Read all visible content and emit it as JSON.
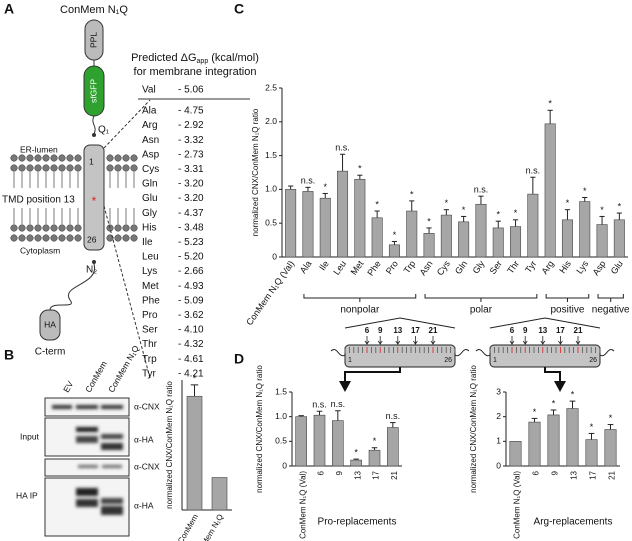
{
  "panel_labels": [
    "A",
    "B",
    "C",
    "D"
  ],
  "diagram": {
    "title": "ConMem N₁Q",
    "ppl": "PPL",
    "gfp": "sfGFP",
    "q1": "Q₁",
    "lumen": "ER-lumen",
    "tmd": "TMD position 13",
    "cytoplasm": "Cytoplasm",
    "start": "1",
    "end": "26",
    "star": "*",
    "n2": "N₂",
    "ha": "HA",
    "cterm": "C-term"
  },
  "table": {
    "title_line1": "Predicted ΔG",
    "title_sub": "app",
    "title_unit": "(kcal/mol)",
    "title_line2": "for membrane integration",
    "header": [
      "Val",
      "- 5.06"
    ],
    "rows": [
      [
        "Ala",
        "- 4.75"
      ],
      [
        "Arg",
        "- 2.92"
      ],
      [
        "Asn",
        "- 3.32"
      ],
      [
        "Asp",
        "- 2.73"
      ],
      [
        "Cys",
        "- 3.31"
      ],
      [
        "Gln",
        "- 3.20"
      ],
      [
        "Glu",
        "- 3.20"
      ],
      [
        "Gly",
        "- 4.37"
      ],
      [
        "His",
        "- 3.48"
      ],
      [
        "Ile",
        "- 5.23"
      ],
      [
        "Leu",
        "- 5.20"
      ],
      [
        "Lys",
        "- 2.66"
      ],
      [
        "Met",
        "- 4.93"
      ],
      [
        "Phe",
        "- 5.09"
      ],
      [
        "Pro",
        "- 3.62"
      ],
      [
        "Ser",
        "- 4.10"
      ],
      [
        "Thr",
        "- 4.32"
      ],
      [
        "Trp",
        "- 4.61"
      ],
      [
        "Tyr",
        "- 4.21"
      ]
    ]
  },
  "blot": {
    "lanes": [
      "EV",
      "ConMem",
      "ConMem N₁Q"
    ],
    "sections": [
      {
        "name": "Input",
        "antibodies": [
          "α-CNX",
          "α-HA"
        ]
      },
      {
        "name": "HA IP",
        "antibodies": [
          "α-CNX",
          "α-HA"
        ]
      }
    ]
  },
  "tmd_schematic": {
    "positions": [
      "6",
      "9",
      "13",
      "17",
      "21"
    ],
    "start": "1",
    "end": "26"
  },
  "chart_data": [
    {
      "type": "bar",
      "y_label": "normalized CNX/ConMem N₁Q ratio",
      "color": "#a6a6a6",
      "categories": [
        "ConMem",
        "ConMem N₁Q"
      ],
      "values": [
        3.5,
        1.0
      ],
      "errors": [
        0.35,
        0
      ],
      "annotations": [
        "*",
        null
      ],
      "ylim": [
        0,
        4
      ]
    },
    {
      "type": "bar",
      "y_label": "normalized CNX/ConMem N₁Q ratio",
      "color": "#a6a6a6",
      "categories": [
        "ConMem N₁Q (Val)",
        "Ala",
        "Ile",
        "Leu",
        "Met",
        "Phe",
        "Pro",
        "Trp",
        "Asn",
        "Cys",
        "Gln",
        "Gly",
        "Ser",
        "Thr",
        "Tyr",
        "Arg",
        "His",
        "Lys",
        "Asp",
        "Glu"
      ],
      "values": [
        1.0,
        0.97,
        0.87,
        1.27,
        1.15,
        0.58,
        0.18,
        0.68,
        0.35,
        0.62,
        0.52,
        0.78,
        0.43,
        0.45,
        0.93,
        1.97,
        0.55,
        0.82,
        0.48,
        0.55
      ],
      "errors": [
        0.05,
        0.06,
        0.07,
        0.25,
        0.06,
        0.1,
        0.05,
        0.15,
        0.08,
        0.08,
        0.08,
        0.12,
        0.1,
        0.1,
        0.25,
        0.2,
        0.15,
        0.06,
        0.12,
        0.1
      ],
      "annotations": [
        null,
        "n.s.",
        "*",
        "n.s.",
        "*",
        "*",
        "*",
        "*",
        "*",
        "*",
        "*",
        "n.s.",
        "*",
        "*",
        "n.s.",
        "*",
        "*",
        "*",
        "*",
        "*"
      ],
      "groups": [
        {
          "name": "nonpolar",
          "from": "Ala",
          "to": "Trp"
        },
        {
          "name": "polar",
          "from": "Asn",
          "to": "Tyr"
        },
        {
          "name": "positive",
          "from": "Arg",
          "to": "Lys"
        },
        {
          "name": "negative",
          "from": "Asp",
          "to": "Glu"
        }
      ],
      "ylim": [
        0,
        2.5
      ],
      "yticks": [
        0,
        0.5,
        {
          "value": 1,
          "label": "1.0"
        },
        1.5,
        {
          "value": 2,
          "label": "2.0"
        },
        2.5
      ]
    },
    {
      "type": "bar",
      "y_label": "normalized CNX/ConMem N₁Q ratio",
      "x_label": "Pro-replacements",
      "color": "#a6a6a6",
      "categories": [
        "ConMem N₁Q (Val)",
        "6",
        "9",
        "13",
        "17",
        "21"
      ],
      "values": [
        1.0,
        1.03,
        0.92,
        0.12,
        0.32,
        0.78
      ],
      "errors": [
        0.02,
        0.08,
        0.2,
        0.02,
        0.05,
        0.1
      ],
      "annotations": [
        null,
        "n.s.",
        "n.s.",
        "*",
        "*",
        "n.s."
      ],
      "ylim": [
        0,
        1.5
      ],
      "yticks": [
        0,
        0.5,
        {
          "value": 1,
          "label": "1.0"
        },
        1.5
      ]
    },
    {
      "type": "bar",
      "y_label": "normalized CNX/ConMem N₁Q ratio",
      "x_label": "Arg-replacements",
      "color": "#a6a6a6",
      "categories": [
        "ConMem N₁Q (Val)",
        "6",
        "9",
        "13",
        "17",
        "21"
      ],
      "values": [
        1.0,
        1.78,
        2.07,
        2.33,
        1.07,
        1.48
      ],
      "errors": [
        0,
        0.15,
        0.2,
        0.3,
        0.25,
        0.2
      ],
      "annotations": [
        null,
        "*",
        "*",
        "*",
        "*",
        "*"
      ],
      "ylim": [
        0,
        3
      ],
      "yticks": [
        0,
        1,
        2,
        3
      ]
    }
  ]
}
